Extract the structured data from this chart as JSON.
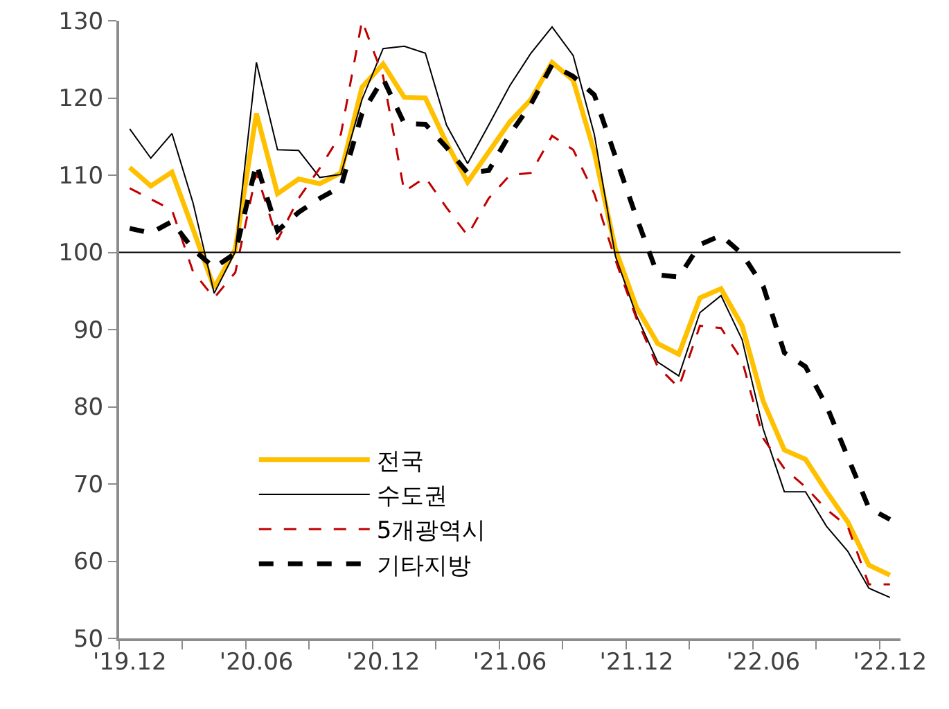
{
  "chart_data": {
    "type": "line",
    "categories": [
      "'19.12",
      null,
      null,
      null,
      null,
      null,
      "'20.06",
      null,
      null,
      null,
      null,
      null,
      "'20.12",
      null,
      null,
      null,
      null,
      null,
      "'21.06",
      null,
      null,
      null,
      null,
      null,
      "'21.12",
      null,
      null,
      null,
      null,
      null,
      "'22.06",
      null,
      null,
      null,
      null,
      null,
      "'22.12"
    ],
    "series": [
      {
        "name": "전국",
        "color": "#ffc000",
        "line_style": "solid",
        "values": [
          111,
          108.6,
          110.4,
          103,
          95.4,
          100.4,
          118,
          107.6,
          109.5,
          108.9,
          110.3,
          121.4,
          124.4,
          120.1,
          120,
          114.2,
          109.1,
          113,
          116.9,
          119.8,
          124.6,
          122.3,
          113,
          100.4,
          92.9,
          88.2,
          86.8,
          94.1,
          95.3,
          90.5,
          80.7,
          74.4,
          73.2,
          69,
          65.1,
          59.5,
          58.2
        ]
      },
      {
        "name": "수도권",
        "color": "#000000",
        "line_style": "solid",
        "values": [
          116,
          112.2,
          115.4,
          106.4,
          94.7,
          100.1,
          124.6,
          113.3,
          113.2,
          109.7,
          110.1,
          119.8,
          126.4,
          126.7,
          125.8,
          116.5,
          111.5,
          116.5,
          121.6,
          125.8,
          129.2,
          125.5,
          115.3,
          99.5,
          91.8,
          85.8,
          84,
          92.2,
          94.4,
          88.7,
          77.1,
          69,
          69,
          64.5,
          61.3,
          56.5,
          55.3
        ]
      },
      {
        "name": "5개광역시",
        "color": "#c00000",
        "line_style": "dashed",
        "values": [
          108.3,
          106.9,
          105.5,
          97.5,
          94.1,
          97.4,
          110.3,
          101.6,
          107,
          110.9,
          115.3,
          130,
          122.8,
          107.9,
          109.7,
          105.8,
          102.2,
          107,
          110,
          110.3,
          115.1,
          113.3,
          107.6,
          99,
          91.4,
          85.2,
          82.5,
          90.5,
          90.2,
          86,
          75.9,
          72,
          69.6,
          66.7,
          64.5,
          57,
          57
        ]
      },
      {
        "name": "기타지방",
        "color": "#000000",
        "line_style": "dashed",
        "values": [
          103.1,
          102.5,
          104,
          100.4,
          98,
          99.9,
          111.5,
          102.8,
          105.2,
          107,
          108.5,
          118,
          122.5,
          116.7,
          116.6,
          113.6,
          110.3,
          110.6,
          115.3,
          119.2,
          124.3,
          122.8,
          120.4,
          112.4,
          104.5,
          97.1,
          96.8,
          101,
          102.2,
          99.8,
          95.6,
          87,
          85.2,
          80.1,
          73.5,
          66.9,
          65.4
        ]
      }
    ],
    "ylim": [
      50,
      130
    ],
    "yticks": [
      50,
      60,
      70,
      80,
      90,
      100,
      110,
      120,
      130
    ],
    "ref_lines": [
      {
        "axis": "y",
        "value": 100,
        "color": "#000000"
      }
    ],
    "grid": false,
    "legend": "bottom left",
    "marker": "none"
  }
}
